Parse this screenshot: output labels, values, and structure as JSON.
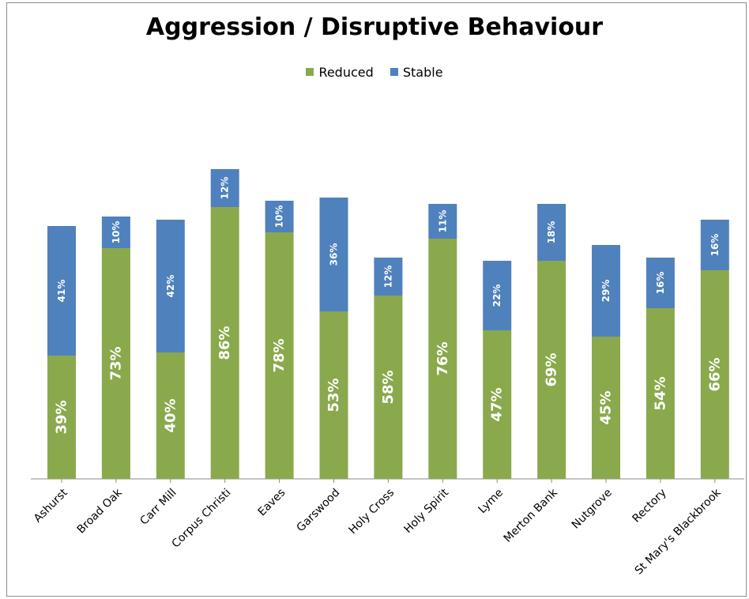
{
  "chart_data": {
    "type": "bar",
    "stacked": true,
    "title": "Aggression / Disruptive Behaviour",
    "xlabel": "",
    "ylabel": "",
    "legend_position": "top-center",
    "grid": false,
    "categories": [
      "Ashurst",
      "Broad Oak",
      "Carr Mill",
      "Corpus Christi",
      "Eaves",
      "Garswood",
      "Holy Cross",
      "Holy Spirit",
      "Lyme",
      "Merton Bank",
      "Nutgrove",
      "Rectory",
      "St Mary's Blackbrook"
    ],
    "series": [
      {
        "name": "Reduced",
        "color": "#8aa94c",
        "values": [
          39,
          73,
          40,
          86,
          78,
          53,
          58,
          76,
          47,
          69,
          45,
          54,
          66
        ],
        "labels": [
          "39%",
          "73%",
          "40%",
          "86%",
          "78%",
          "53%",
          "58%",
          "76%",
          "47%",
          "69%",
          "45%",
          "54%",
          "66%"
        ]
      },
      {
        "name": "Stable",
        "color": "#4f81bd",
        "values": [
          41,
          10,
          42,
          12,
          10,
          36,
          12,
          11,
          22,
          18,
          29,
          16,
          16
        ],
        "labels": [
          "41%",
          "10%",
          "42%",
          "12%",
          "10%",
          "36%",
          "12%",
          "11%",
          "22%",
          "18%",
          "29%",
          "16%",
          "16%"
        ]
      }
    ]
  }
}
